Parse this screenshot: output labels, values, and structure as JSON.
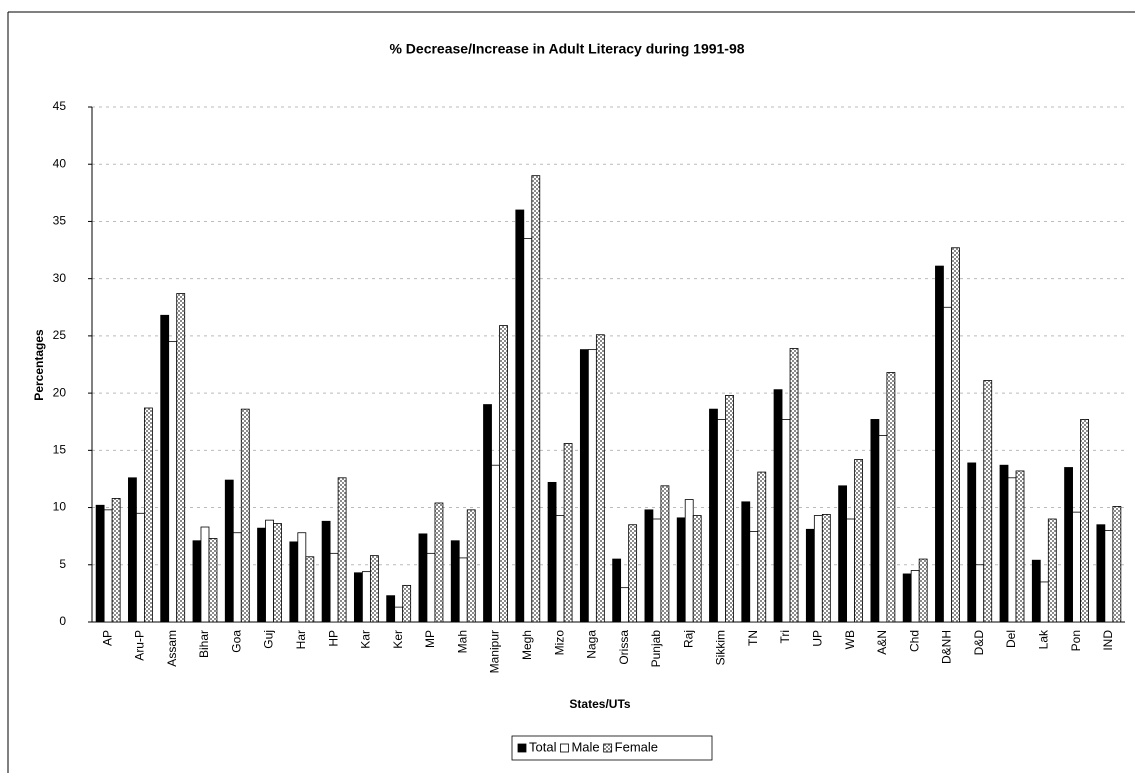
{
  "chart_data": {
    "type": "bar",
    "title": "% Decrease/Increase in Adult Literacy during 1991-98",
    "x_label": "States/UTs",
    "y_label": "Percentages",
    "categories": [
      "AP",
      "Aru-P",
      "Assam",
      "Bihar",
      "Goa",
      "Guj",
      "Har",
      "HP",
      "Kar",
      "Ker",
      "MP",
      "Mah",
      "Manipur",
      "Megh",
      "Mizo",
      "Naga",
      "Orissa",
      "Punjab",
      "Raj",
      "Sikkim",
      "TN",
      "Tri",
      "UP",
      "WB",
      "A&N",
      "Chd",
      "D&NH",
      "D&D",
      "Del",
      "Lak",
      "Pon",
      "IND"
    ],
    "series": [
      {
        "name": "Total",
        "color": "#000000",
        "values": [
          10.2,
          12.6,
          26.8,
          7.1,
          12.4,
          8.2,
          7.0,
          8.8,
          4.3,
          2.3,
          7.7,
          7.1,
          19.0,
          36.0,
          12.2,
          23.8,
          5.5,
          9.8,
          9.1,
          18.6,
          10.5,
          20.3,
          8.1,
          11.9,
          17.7,
          4.2,
          31.1,
          13.9,
          13.7,
          5.4,
          13.5,
          8.5
        ]
      },
      {
        "name": "Male",
        "color": "#ffffff",
        "values": [
          9.8,
          9.5,
          24.5,
          8.3,
          7.8,
          8.9,
          7.8,
          6.0,
          4.4,
          1.3,
          6.0,
          5.6,
          13.7,
          33.5,
          9.3,
          23.8,
          3.0,
          9.0,
          10.7,
          17.7,
          7.9,
          17.7,
          9.3,
          9.0,
          16.3,
          4.5,
          27.5,
          5.0,
          12.6,
          3.5,
          9.6,
          8.0
        ]
      },
      {
        "name": "Female",
        "color": "#8c8c8c",
        "values": [
          10.8,
          18.7,
          28.7,
          7.3,
          18.6,
          8.6,
          5.7,
          12.6,
          5.8,
          3.2,
          10.4,
          9.8,
          25.9,
          39.0,
          15.6,
          25.1,
          8.5,
          11.9,
          9.3,
          19.8,
          13.1,
          23.9,
          9.4,
          14.2,
          21.8,
          5.5,
          32.7,
          21.1,
          13.2,
          9.0,
          17.7,
          10.1
        ]
      }
    ],
    "ylim": [
      0,
      45
    ],
    "yticks": [
      0,
      5,
      10,
      15,
      20,
      25,
      30,
      35,
      40,
      45
    ],
    "grid": true,
    "legend": "bottom"
  }
}
